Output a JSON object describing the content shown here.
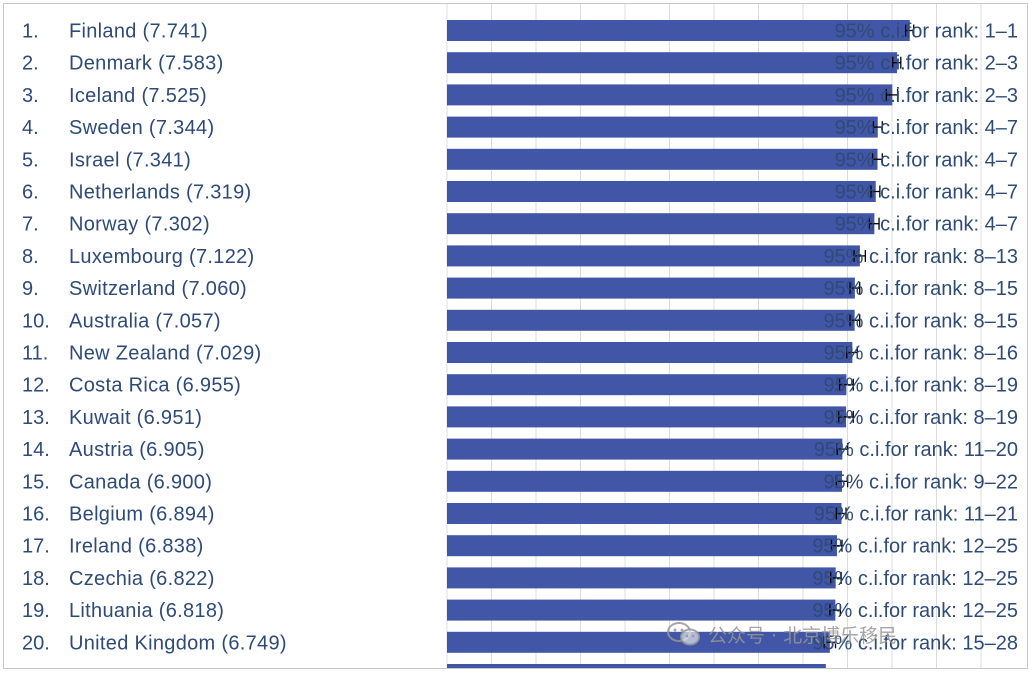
{
  "colors": {
    "bar": "#4156a6",
    "text": "#2e4b78",
    "grid": "#dcdcdc",
    "errorbar": "#000000"
  },
  "watermark": {
    "text": "公众号 · 北京博乐移民",
    "icon": "wechat-icon"
  },
  "chart_data": {
    "type": "bar",
    "orientation": "horizontal",
    "grid": true,
    "xlim": [
      2.0,
      8.6
    ],
    "rows": [
      {
        "rank": "1.",
        "label": "Finland (7.741)",
        "value": 7.741,
        "ci_low": 7.69,
        "ci_high": 7.79,
        "ci_text": "95% c.i.for rank: 1–1"
      },
      {
        "rank": "2.",
        "label": "Denmark (7.583)",
        "value": 7.583,
        "ci_low": 7.53,
        "ci_high": 7.63,
        "ci_text": "95% c.i.for rank: 2–3"
      },
      {
        "rank": "3.",
        "label": "Iceland (7.525)",
        "value": 7.525,
        "ci_low": 7.45,
        "ci_high": 7.59,
        "ci_text": "95% c.i.for rank: 2–3"
      },
      {
        "rank": "4.",
        "label": "Sweden (7.344)",
        "value": 7.344,
        "ci_low": 7.29,
        "ci_high": 7.4,
        "ci_text": "95% c.i.for rank: 4–7"
      },
      {
        "rank": "5.",
        "label": "Israel (7.341)",
        "value": 7.341,
        "ci_low": 7.28,
        "ci_high": 7.4,
        "ci_text": "95% c.i.for rank: 4–7"
      },
      {
        "rank": "6.",
        "label": "Netherlands (7.319)",
        "value": 7.319,
        "ci_low": 7.26,
        "ci_high": 7.37,
        "ci_text": "95% c.i.for rank: 4–7"
      },
      {
        "rank": "7.",
        "label": "Norway (7.302)",
        "value": 7.302,
        "ci_low": 7.24,
        "ci_high": 7.36,
        "ci_text": "95% c.i.for rank: 4–7"
      },
      {
        "rank": "8.",
        "label": "Luxembourg (7.122)",
        "value": 7.122,
        "ci_low": 7.05,
        "ci_high": 7.19,
        "ci_text": "95% c.i.for rank: 8–13"
      },
      {
        "rank": "9.",
        "label": "Switzerland (7.060)",
        "value": 7.06,
        "ci_low": 7.0,
        "ci_high": 7.12,
        "ci_text": "95% c.i.for rank: 8–15"
      },
      {
        "rank": "10.",
        "label": "Australia (7.057)",
        "value": 7.057,
        "ci_low": 7.0,
        "ci_high": 7.12,
        "ci_text": "95% c.i.for rank: 8–15"
      },
      {
        "rank": "11.",
        "label": "New Zealand (7.029)",
        "value": 7.029,
        "ci_low": 6.96,
        "ci_high": 7.09,
        "ci_text": "95% c.i.for rank: 8–16"
      },
      {
        "rank": "12.",
        "label": "Costa Rica (6.955)",
        "value": 6.955,
        "ci_low": 6.87,
        "ci_high": 7.04,
        "ci_text": "95% c.i.for rank: 8–19"
      },
      {
        "rank": "13.",
        "label": "Kuwait (6.951)",
        "value": 6.951,
        "ci_low": 6.86,
        "ci_high": 7.04,
        "ci_text": "95% c.i.for rank: 8–19"
      },
      {
        "rank": "14.",
        "label": "Austria (6.905)",
        "value": 6.905,
        "ci_low": 6.84,
        "ci_high": 6.97,
        "ci_text": "95% c.i.for rank: 11–20"
      },
      {
        "rank": "15.",
        "label": "Canada (6.900)",
        "value": 6.9,
        "ci_low": 6.83,
        "ci_high": 6.97,
        "ci_text": "95% c.i.for rank: 9–22"
      },
      {
        "rank": "16.",
        "label": "Belgium (6.894)",
        "value": 6.894,
        "ci_low": 6.83,
        "ci_high": 6.95,
        "ci_text": "95% c.i.for rank: 11–21"
      },
      {
        "rank": "17.",
        "label": "Ireland (6.838)",
        "value": 6.838,
        "ci_low": 6.77,
        "ci_high": 6.9,
        "ci_text": "95% c.i.for rank: 12–25"
      },
      {
        "rank": "18.",
        "label": "Czechia (6.822)",
        "value": 6.822,
        "ci_low": 6.76,
        "ci_high": 6.89,
        "ci_text": "95% c.i.for rank: 12–25"
      },
      {
        "rank": "19.",
        "label": "Lithuania (6.818)",
        "value": 6.818,
        "ci_low": 6.75,
        "ci_high": 6.88,
        "ci_text": "95% c.i.for rank: 12–25"
      },
      {
        "rank": "20.",
        "label": "United Kingdom (6.749)",
        "value": 6.749,
        "ci_low": 6.68,
        "ci_high": 6.82,
        "ci_text": "95% c.i.for rank: 15–28"
      }
    ]
  }
}
